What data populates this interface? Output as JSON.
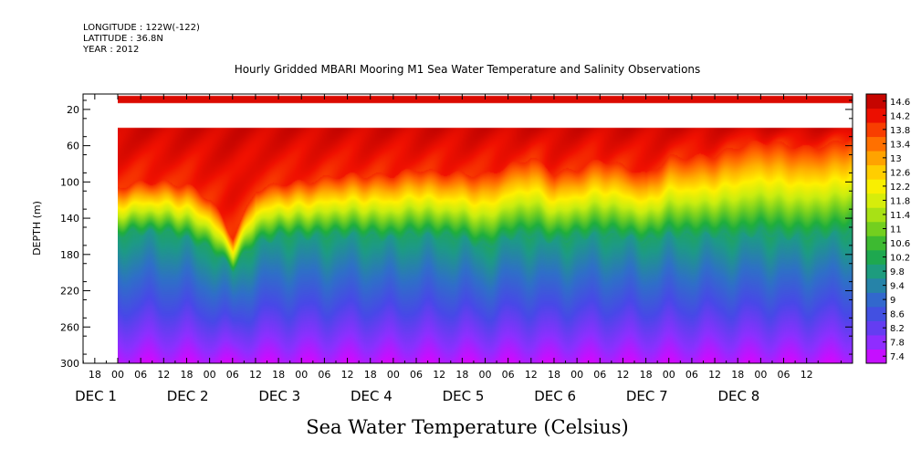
{
  "header": {
    "longitude": "LONGITUDE : 122W(-122)",
    "latitude": "LATITUDE : 36.8N",
    "year": "YEAR : 2012"
  },
  "chart_data": {
    "type": "heatmap",
    "title": "Hourly Gridded MBARI Mooring M1 Sea Water Temperature and Salinity Observations",
    "xlabel": "",
    "ylabel": "DEPTH (m)",
    "colorbar_label": "Sea Water Temperature (Celsius)",
    "ylim": [
      300,
      3
    ],
    "yticks": [
      20,
      60,
      100,
      140,
      180,
      220,
      260,
      300
    ],
    "x_hour_ticks": [
      "18",
      "00",
      "06",
      "12",
      "18",
      "00",
      "06",
      "12",
      "18",
      "00",
      "06",
      "12",
      "18",
      "00",
      "06",
      "12",
      "18",
      "00",
      "06",
      "12",
      "18",
      "00",
      "06",
      "12",
      "18",
      "00",
      "06",
      "12",
      "18",
      "00",
      "06",
      "12"
    ],
    "x_day_labels": [
      "DEC 1",
      "DEC 2",
      "DEC 3",
      "DEC 4",
      "DEC 5",
      "DEC 6",
      "DEC 7",
      "DEC 8"
    ],
    "colorbar_levels": [
      "14.6",
      "14.2",
      "13.8",
      "13.4",
      "13",
      "12.6",
      "12.2",
      "11.8",
      "11.4",
      "11",
      "10.6",
      "10.2",
      "9.8",
      "9.4",
      "9",
      "8.6",
      "8.2",
      "7.8",
      "7.4"
    ],
    "colorscale": [
      "#e000ff",
      "#8b30ff",
      "#4848e8",
      "#2f6fc8",
      "#1d9a86",
      "#1fae3c",
      "#73cf20",
      "#c8ed10",
      "#fff000",
      "#ffb000",
      "#ff6000",
      "#f01000",
      "#b40000"
    ],
    "data_start": "DEC 1 00",
    "surface_band": {
      "depth_range_m": [
        5,
        13
      ],
      "temperature_c": 14.4
    },
    "gap_depth_range_m": [
      13,
      40
    ],
    "thermocline": {
      "day_hours": [
        0,
        6,
        12,
        18,
        24,
        30,
        36,
        42,
        48,
        54,
        60,
        66,
        72,
        78,
        84,
        90,
        96,
        102,
        108,
        114,
        120,
        126,
        132,
        138,
        144,
        150,
        156,
        162,
        168,
        174,
        180,
        186,
        192
      ],
      "depth_14c_m": [
        105,
        100,
        100,
        103,
        118,
        160,
        108,
        102,
        100,
        95,
        92,
        92,
        92,
        85,
        90,
        90,
        92,
        82,
        72,
        90,
        85,
        75,
        82,
        92,
        72,
        72,
        70,
        60,
        55,
        58,
        62,
        58,
        50
      ],
      "depth_10c_m": [
        160,
        155,
        156,
        162,
        175,
        195,
        168,
        160,
        160,
        160,
        158,
        160,
        162,
        158,
        160,
        162,
        172,
        160,
        158,
        165,
        160,
        158,
        160,
        165,
        158,
        160,
        158,
        160,
        155,
        160,
        160,
        158,
        155
      ]
    },
    "temperature_surface_c": 14.5,
    "temperature_bottom_c": 7.6
  }
}
